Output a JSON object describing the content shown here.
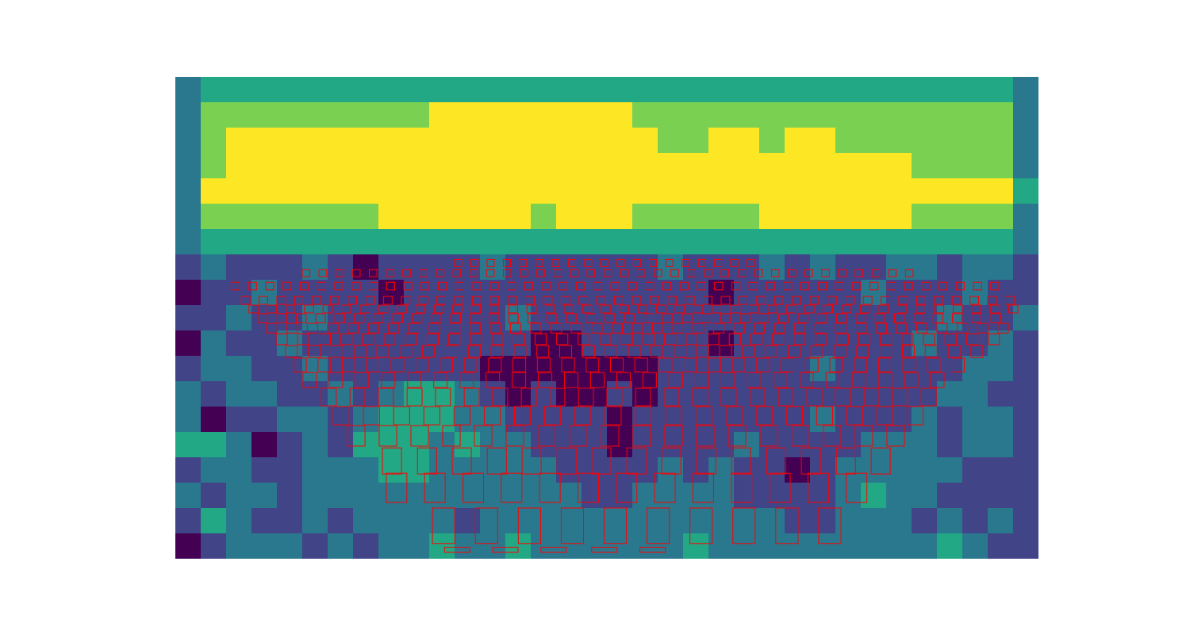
{
  "chart_data": {
    "type": "heatmap",
    "tick_labels": false,
    "xlim": [
      0,
      34
    ],
    "ylim": [
      0,
      19
    ],
    "clim": [
      0,
      5
    ],
    "color": "viridis",
    "cells": [
      [
        2,
        3,
        3,
        3,
        3,
        3,
        3,
        3,
        3,
        3,
        3,
        3,
        3,
        3,
        3,
        3,
        3,
        3,
        3,
        3,
        3,
        3,
        3,
        3,
        3,
        3,
        3,
        3,
        3,
        3,
        3,
        3,
        3,
        2
      ],
      [
        2,
        4,
        4,
        4,
        4,
        4,
        4,
        4,
        4,
        4,
        5,
        5,
        5,
        5,
        5,
        5,
        5,
        5,
        4,
        4,
        4,
        4,
        4,
        4,
        4,
        4,
        4,
        4,
        4,
        4,
        4,
        4,
        4,
        2
      ],
      [
        2,
        4,
        5,
        5,
        5,
        5,
        5,
        5,
        5,
        5,
        5,
        5,
        5,
        5,
        5,
        5,
        5,
        5,
        5,
        4,
        4,
        5,
        5,
        4,
        5,
        5,
        4,
        4,
        4,
        4,
        4,
        4,
        4,
        2
      ],
      [
        2,
        4,
        5,
        5,
        5,
        5,
        5,
        5,
        5,
        5,
        5,
        5,
        5,
        5,
        5,
        5,
        5,
        5,
        5,
        5,
        5,
        5,
        5,
        5,
        5,
        5,
        5,
        5,
        5,
        4,
        4,
        4,
        4,
        2
      ],
      [
        2,
        5,
        5,
        5,
        5,
        5,
        5,
        5,
        5,
        5,
        5,
        5,
        5,
        5,
        5,
        5,
        5,
        5,
        5,
        5,
        5,
        5,
        5,
        5,
        5,
        5,
        5,
        5,
        5,
        5,
        5,
        5,
        5,
        3
      ],
      [
        2,
        4,
        4,
        4,
        4,
        4,
        4,
        4,
        5,
        5,
        5,
        5,
        5,
        5,
        4,
        5,
        5,
        5,
        4,
        4,
        4,
        4,
        4,
        5,
        5,
        5,
        5,
        5,
        5,
        4,
        4,
        4,
        4,
        2
      ],
      [
        2,
        3,
        3,
        3,
        3,
        3,
        3,
        3,
        3,
        3,
        3,
        3,
        3,
        3,
        3,
        3,
        3,
        3,
        3,
        3,
        3,
        3,
        3,
        3,
        3,
        3,
        3,
        3,
        3,
        3,
        3,
        3,
        3,
        2
      ],
      [
        1,
        2,
        1,
        1,
        1,
        2,
        1,
        0,
        1,
        1,
        1,
        1,
        2,
        1,
        1,
        1,
        1,
        1,
        1,
        2,
        1,
        1,
        1,
        2,
        1,
        2,
        1,
        1,
        2,
        2,
        1,
        2,
        2,
        1
      ],
      [
        0,
        1,
        1,
        2,
        1,
        1,
        1,
        1,
        0,
        1,
        1,
        1,
        1,
        1,
        1,
        1,
        1,
        1,
        1,
        1,
        1,
        0,
        1,
        1,
        1,
        1,
        1,
        2,
        1,
        1,
        1,
        2,
        1,
        1
      ],
      [
        1,
        1,
        2,
        1,
        1,
        2,
        1,
        1,
        1,
        1,
        1,
        1,
        1,
        2,
        1,
        1,
        1,
        1,
        1,
        1,
        1,
        1,
        1,
        1,
        1,
        1,
        1,
        1,
        1,
        1,
        2,
        1,
        1,
        2
      ],
      [
        0,
        2,
        1,
        1,
        2,
        1,
        1,
        1,
        1,
        1,
        1,
        1,
        1,
        1,
        0,
        0,
        1,
        1,
        1,
        1,
        1,
        0,
        1,
        1,
        1,
        1,
        1,
        1,
        1,
        2,
        1,
        1,
        2,
        1
      ],
      [
        1,
        2,
        2,
        1,
        1,
        2,
        1,
        1,
        1,
        1,
        1,
        1,
        0,
        0,
        0,
        0,
        0,
        0,
        0,
        1,
        1,
        1,
        1,
        1,
        1,
        2,
        1,
        1,
        1,
        1,
        1,
        2,
        2,
        1
      ],
      [
        2,
        1,
        2,
        2,
        1,
        1,
        2,
        1,
        2,
        3,
        3,
        2,
        1,
        0,
        1,
        0,
        0,
        1,
        0,
        1,
        1,
        1,
        1,
        1,
        1,
        1,
        1,
        1,
        1,
        1,
        2,
        2,
        1,
        1
      ],
      [
        2,
        0,
        1,
        1,
        2,
        2,
        1,
        2,
        3,
        3,
        3,
        2,
        2,
        1,
        1,
        1,
        1,
        0,
        1,
        1,
        1,
        1,
        1,
        1,
        1,
        2,
        1,
        1,
        1,
        2,
        1,
        2,
        2,
        1
      ],
      [
        3,
        3,
        2,
        0,
        1,
        2,
        1,
        3,
        3,
        3,
        2,
        3,
        2,
        2,
        1,
        1,
        1,
        0,
        1,
        1,
        1,
        1,
        2,
        1,
        1,
        1,
        1,
        2,
        2,
        2,
        1,
        2,
        2,
        1
      ],
      [
        1,
        2,
        2,
        1,
        1,
        2,
        2,
        2,
        3,
        3,
        2,
        2,
        2,
        2,
        2,
        1,
        1,
        1,
        1,
        2,
        1,
        2,
        1,
        1,
        0,
        1,
        2,
        2,
        2,
        2,
        2,
        1,
        1,
        1
      ],
      [
        2,
        1,
        2,
        2,
        1,
        2,
        2,
        2,
        2,
        2,
        2,
        2,
        2,
        2,
        2,
        2,
        1,
        1,
        2,
        2,
        2,
        2,
        1,
        1,
        1,
        1,
        2,
        3,
        2,
        2,
        1,
        1,
        1,
        1
      ],
      [
        1,
        3,
        2,
        1,
        1,
        2,
        1,
        2,
        2,
        2,
        2,
        1,
        2,
        2,
        2,
        2,
        2,
        2,
        2,
        2,
        2,
        2,
        2,
        2,
        1,
        1,
        2,
        2,
        2,
        1,
        2,
        1,
        2,
        1
      ],
      [
        0,
        1,
        2,
        2,
        2,
        1,
        2,
        1,
        2,
        2,
        3,
        2,
        2,
        3,
        2,
        2,
        2,
        2,
        2,
        2,
        3,
        2,
        2,
        2,
        2,
        2,
        2,
        2,
        2,
        2,
        3,
        2,
        1,
        1
      ]
    ],
    "boxes": {
      "color": "#ff0000",
      "rows": [
        {
          "y1": 7.2,
          "y2": 7.48,
          "width": 0.28,
          "x": [
            11.0,
            11.64,
            12.28,
            12.92,
            13.56,
            14.2,
            14.84,
            15.48,
            16.12,
            16.76,
            17.4,
            18.04,
            18.68,
            19.32,
            19.96,
            20.6,
            21.24,
            21.88,
            22.52
          ]
        },
        {
          "y1": 7.6,
          "y2": 7.88,
          "width": 0.3,
          "x": [
            5.0,
            5.66,
            6.32,
            6.98,
            7.64,
            8.3,
            8.96,
            9.62,
            10.28,
            10.94,
            11.6,
            12.26,
            12.92,
            13.58,
            14.24,
            14.9,
            15.56,
            16.22,
            16.88,
            17.54,
            18.2,
            18.86,
            19.52,
            20.18,
            20.84,
            21.5,
            22.16,
            22.82,
            23.48,
            24.14,
            24.8,
            25.46,
            26.12,
            26.78,
            27.44,
            28.1,
            28.76
          ]
        },
        {
          "y1": 8.1,
          "y2": 8.4,
          "width": 0.32,
          "x": [
            2.2,
            2.88,
            3.56,
            4.24,
            4.92,
            5.6,
            6.28,
            6.96,
            7.64,
            8.32,
            9.0,
            9.68,
            10.36,
            11.04,
            11.72,
            12.4,
            13.08,
            13.76,
            14.44,
            15.12,
            15.8,
            16.48,
            17.16,
            17.84,
            18.52,
            19.2,
            19.88,
            20.56,
            21.24,
            21.92,
            22.6,
            23.28,
            23.96,
            24.64,
            25.32,
            26.0,
            26.68,
            27.36,
            28.04,
            28.72,
            29.4,
            30.08,
            30.76,
            31.44,
            32.12
          ]
        },
        {
          "y1": 8.66,
          "y2": 8.97,
          "width": 0.34,
          "x": [
            2.6,
            3.3,
            4.0,
            4.7,
            5.4,
            6.1,
            6.8,
            7.5,
            8.2,
            8.9,
            9.6,
            10.3,
            11.0,
            11.7,
            12.4,
            13.1,
            13.8,
            14.5,
            15.2,
            15.9,
            16.6,
            17.3,
            18.0,
            18.7,
            19.4,
            20.1,
            20.8,
            21.5,
            22.2,
            22.9,
            23.6,
            24.3,
            25.0,
            25.7,
            26.4,
            27.1,
            27.8,
            28.5,
            29.2,
            29.9,
            30.6,
            31.3,
            32.0,
            32.7
          ]
        },
        {
          "y1": 9.0,
          "y2": 9.31,
          "width": 0.36,
          "x": [
            2.9,
            3.63,
            4.36,
            5.09,
            5.82,
            6.55,
            7.28,
            8.01,
            8.74,
            9.47,
            10.2,
            10.93,
            11.66,
            12.39,
            13.12,
            13.85,
            14.58,
            15.31,
            16.04,
            16.77,
            17.5,
            18.23,
            18.96,
            19.69,
            20.42,
            21.15,
            21.88,
            22.61,
            23.34,
            24.07,
            24.8,
            25.53,
            26.26,
            26.99,
            27.72,
            28.45,
            29.18,
            29.91,
            30.64,
            31.37,
            32.1,
            32.83
          ]
        },
        {
          "y1": 9.34,
          "y2": 9.69,
          "width": 0.38,
          "x": [
            3.25,
            4.01,
            4.77,
            5.53,
            6.29,
            7.05,
            7.81,
            8.57,
            9.33,
            10.09,
            10.85,
            11.61,
            12.37,
            13.13,
            13.89,
            14.65,
            15.41,
            16.17,
            16.93,
            17.69,
            18.45,
            19.21,
            19.97,
            20.73,
            21.49,
            22.25,
            23.01,
            23.77,
            24.53,
            25.29,
            26.05,
            26.81,
            27.57,
            28.33,
            29.09,
            29.85,
            30.61,
            31.37,
            32.13
          ]
        },
        {
          "y1": 9.72,
          "y2": 10.1,
          "width": 0.41,
          "x": [
            3.6,
            4.4,
            5.2,
            6.0,
            6.8,
            7.6,
            8.4,
            9.2,
            10.0,
            10.8,
            11.6,
            12.4,
            13.2,
            14.0,
            14.8,
            15.6,
            16.4,
            17.2,
            18.0,
            18.8,
            19.6,
            20.4,
            21.2,
            22.0,
            22.8,
            23.6,
            24.4,
            25.2,
            26.0,
            26.8,
            27.6,
            28.4,
            29.2,
            30.0,
            30.8,
            31.6,
            32.4
          ]
        },
        {
          "y1": 10.13,
          "y2": 10.56,
          "width": 0.44,
          "x": [
            3.97,
            4.82,
            5.67,
            6.52,
            7.37,
            8.22,
            9.07,
            9.92,
            10.77,
            11.62,
            12.47,
            13.32,
            14.17,
            15.02,
            15.87,
            16.72,
            17.57,
            18.42,
            19.27,
            20.12,
            20.97,
            21.82,
            22.67,
            23.52,
            24.37,
            25.22,
            26.07,
            26.92,
            27.77,
            28.62,
            29.47,
            30.32,
            31.17,
            32.02
          ]
        },
        {
          "y1": 10.59,
          "y2": 11.06,
          "width": 0.47,
          "x": [
            4.34,
            5.24,
            6.14,
            7.04,
            7.94,
            8.84,
            9.74,
            10.64,
            11.54,
            12.44,
            13.34,
            14.24,
            15.14,
            16.04,
            16.94,
            17.84,
            18.74,
            19.64,
            20.54,
            21.44,
            22.34,
            23.24,
            24.14,
            25.04,
            25.94,
            26.84,
            27.74,
            28.64,
            29.54,
            30.44,
            31.34
          ]
        },
        {
          "y1": 11.09,
          "y2": 11.63,
          "width": 0.5,
          "x": [
            4.66,
            5.62,
            6.58,
            7.54,
            8.5,
            9.46,
            10.42,
            11.38,
            12.34,
            13.3,
            14.26,
            15.22,
            16.18,
            17.14,
            18.1,
            19.06,
            20.02,
            20.98,
            21.94,
            22.9,
            23.86,
            24.82,
            25.78,
            26.74,
            27.7,
            28.66,
            29.62,
            30.58
          ]
        },
        {
          "y1": 11.66,
          "y2": 12.25,
          "width": 0.53,
          "x": [
            5.03,
            6.06,
            7.09,
            8.12,
            9.15,
            10.18,
            11.21,
            12.24,
            13.27,
            14.3,
            15.33,
            16.36,
            17.39,
            18.42,
            19.45,
            20.48,
            21.51,
            22.54,
            23.57,
            24.6,
            25.63,
            26.66,
            27.69,
            28.72,
            29.75
          ]
        },
        {
          "y1": 12.28,
          "y2": 12.97,
          "width": 0.59,
          "x": [
            5.75,
            6.88,
            8.0,
            9.13,
            10.25,
            11.38,
            12.5,
            13.63,
            14.75,
            15.88,
            17.0,
            18.13,
            19.25,
            20.38,
            21.5,
            22.63,
            23.75,
            24.88,
            26.0,
            27.13,
            28.25,
            29.38
          ]
        },
        {
          "y1": 13.0,
          "y2": 13.72,
          "width": 0.63,
          "x": [
            6.22,
            7.41,
            8.6,
            9.79,
            10.98,
            12.17,
            13.36,
            14.55,
            15.74,
            16.93,
            18.12,
            19.31,
            20.5,
            21.69,
            22.88,
            24.07,
            25.26,
            26.45,
            27.64,
            28.83
          ]
        },
        {
          "y1": 13.75,
          "y2": 14.56,
          "width": 0.69,
          "x": [
            6.78,
            8.03,
            9.28,
            10.53,
            11.78,
            13.03,
            14.28,
            15.53,
            16.78,
            18.03,
            19.28,
            20.53,
            21.78,
            23.03,
            24.28,
            25.53,
            26.78,
            28.03
          ]
        },
        {
          "y1": 14.63,
          "y2": 15.66,
          "width": 0.75,
          "x": [
            8.16,
            9.54,
            10.91,
            12.29,
            13.66,
            15.04,
            16.41,
            17.79,
            19.16,
            20.54,
            21.91,
            23.29,
            24.66,
            26.04,
            27.41
          ]
        },
        {
          "y1": 15.63,
          "y2": 16.78,
          "width": 0.81,
          "x": [
            8.31,
            9.82,
            11.33,
            12.84,
            14.35,
            15.86,
            17.37,
            18.88,
            20.39,
            21.9,
            23.41,
            24.92,
            26.43
          ]
        },
        {
          "y1": 17.0,
          "y2": 18.4,
          "width": 0.88,
          "x": [
            10.13,
            11.82,
            13.51,
            15.2,
            16.89,
            18.58,
            20.27,
            21.96,
            23.65,
            25.34
          ]
        },
        {
          "y1": 18.55,
          "y2": 18.75,
          "width": 1.0,
          "x": [
            10.6,
            12.5,
            14.4,
            16.4,
            18.3
          ]
        }
      ]
    }
  }
}
